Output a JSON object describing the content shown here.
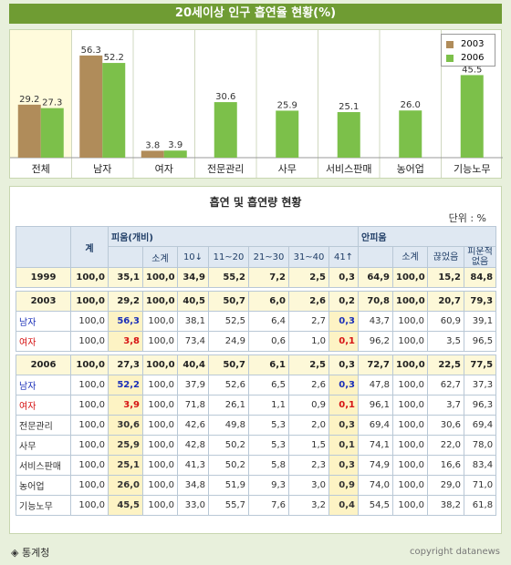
{
  "title": "20세이상 인구 흡연율 현황(%)",
  "colors": {
    "s2003": "#b08c5a",
    "s2006": "#7cc04a",
    "header": "#6f9c33"
  },
  "chart_data": {
    "type": "bar",
    "categories": [
      "전체",
      "남자",
      "여자",
      "전문관리",
      "사무",
      "서비스판매",
      "농어업",
      "기능노무"
    ],
    "series": [
      {
        "name": "2003",
        "values": [
          29.2,
          56.3,
          3.8,
          null,
          null,
          null,
          null,
          null
        ]
      },
      {
        "name": "2006",
        "values": [
          27.3,
          52.2,
          3.9,
          30.6,
          25.9,
          25.1,
          26.0,
          45.5
        ]
      }
    ],
    "value_labels": {
      "2003": [
        "29.2",
        "56.3",
        "3.8",
        "",
        "",
        "",
        "",
        ""
      ],
      "2006": [
        "27.3",
        "52.2",
        "3.9",
        "30.6",
        "25.9",
        "25.1",
        "26.0",
        "45.5"
      ]
    },
    "ylim": [
      0,
      60
    ],
    "legend_position": "top-right",
    "highlight_category": "전체"
  },
  "table": {
    "title": "흡연 및 흡연량 현황",
    "unit": "단위 : %",
    "headers": {
      "total": "계",
      "smoking": "피움(개비)",
      "non_smoking": "안피움",
      "smoking_sub": [
        "소계",
        "10↓",
        "11~20",
        "21~30",
        "31~40",
        "41↑"
      ],
      "non_smoking_sub": [
        "소계",
        "끊었음",
        "피운적 없음"
      ]
    },
    "rows": [
      {
        "type": "year",
        "label": "1999",
        "cells": [
          "100,0",
          "35,1",
          "100,0",
          "34,9",
          "55,2",
          "7,2",
          "2,5",
          "0,3",
          "64,9",
          "100,0",
          "15,2",
          "84,8"
        ]
      },
      {
        "type": "sep"
      },
      {
        "type": "year",
        "label": "2003",
        "cells": [
          "100,0",
          "29,2",
          "100,0",
          "40,5",
          "50,7",
          "6,0",
          "2,6",
          "0,2",
          "70,8",
          "100,0",
          "20,7",
          "79,3"
        ]
      },
      {
        "type": "male",
        "label": "남자",
        "cells": [
          "100,0",
          "56,3",
          "100,0",
          "38,1",
          "52,5",
          "6,4",
          "2,7",
          "0,3",
          "43,7",
          "100,0",
          "60,9",
          "39,1"
        ]
      },
      {
        "type": "female",
        "label": "여자",
        "cells": [
          "100,0",
          "3,8",
          "100,0",
          "73,4",
          "24,9",
          "0,6",
          "1,0",
          "0,1",
          "96,2",
          "100,0",
          "3,5",
          "96,5"
        ]
      },
      {
        "type": "sep"
      },
      {
        "type": "year",
        "label": "2006",
        "cells": [
          "100,0",
          "27,3",
          "100,0",
          "40,4",
          "50,7",
          "6,1",
          "2,5",
          "0,3",
          "72,7",
          "100,0",
          "22,5",
          "77,5"
        ]
      },
      {
        "type": "male",
        "label": "남자",
        "cells": [
          "100,0",
          "52,2",
          "100,0",
          "37,9",
          "52,6",
          "6,5",
          "2,6",
          "0,3",
          "47,8",
          "100,0",
          "62,7",
          "37,3"
        ]
      },
      {
        "type": "female",
        "label": "여자",
        "cells": [
          "100,0",
          "3,9",
          "100,0",
          "71,8",
          "26,1",
          "1,1",
          "0,9",
          "0,1",
          "96,1",
          "100,0",
          "3,7",
          "96,3"
        ]
      },
      {
        "type": "job",
        "label": "전문관리",
        "cells": [
          "100,0",
          "30,6",
          "100,0",
          "42,6",
          "49,8",
          "5,3",
          "2,0",
          "0,3",
          "69,4",
          "100,0",
          "30,6",
          "69,4"
        ]
      },
      {
        "type": "job",
        "label": "사무",
        "cells": [
          "100,0",
          "25,9",
          "100,0",
          "42,8",
          "50,2",
          "5,3",
          "1,5",
          "0,1",
          "74,1",
          "100,0",
          "22,0",
          "78,0"
        ]
      },
      {
        "type": "job",
        "label": "서비스판매",
        "cells": [
          "100,0",
          "25,1",
          "100,0",
          "41,3",
          "50,2",
          "5,8",
          "2,3",
          "0,3",
          "74,9",
          "100,0",
          "16,6",
          "83,4"
        ]
      },
      {
        "type": "job",
        "label": "농어업",
        "cells": [
          "100,0",
          "26,0",
          "100,0",
          "34,8",
          "51,9",
          "9,3",
          "3,0",
          "0,9",
          "74,0",
          "100,0",
          "29,0",
          "71,0"
        ]
      },
      {
        "type": "job",
        "label": "기능노무",
        "cells": [
          "100,0",
          "45,5",
          "100,0",
          "33,0",
          "55,7",
          "7,6",
          "3,2",
          "0,4",
          "54,5",
          "100,0",
          "38,2",
          "61,8"
        ]
      }
    ]
  },
  "footer": {
    "source": "◈ 통계청",
    "copyright": "copyright datanews"
  }
}
